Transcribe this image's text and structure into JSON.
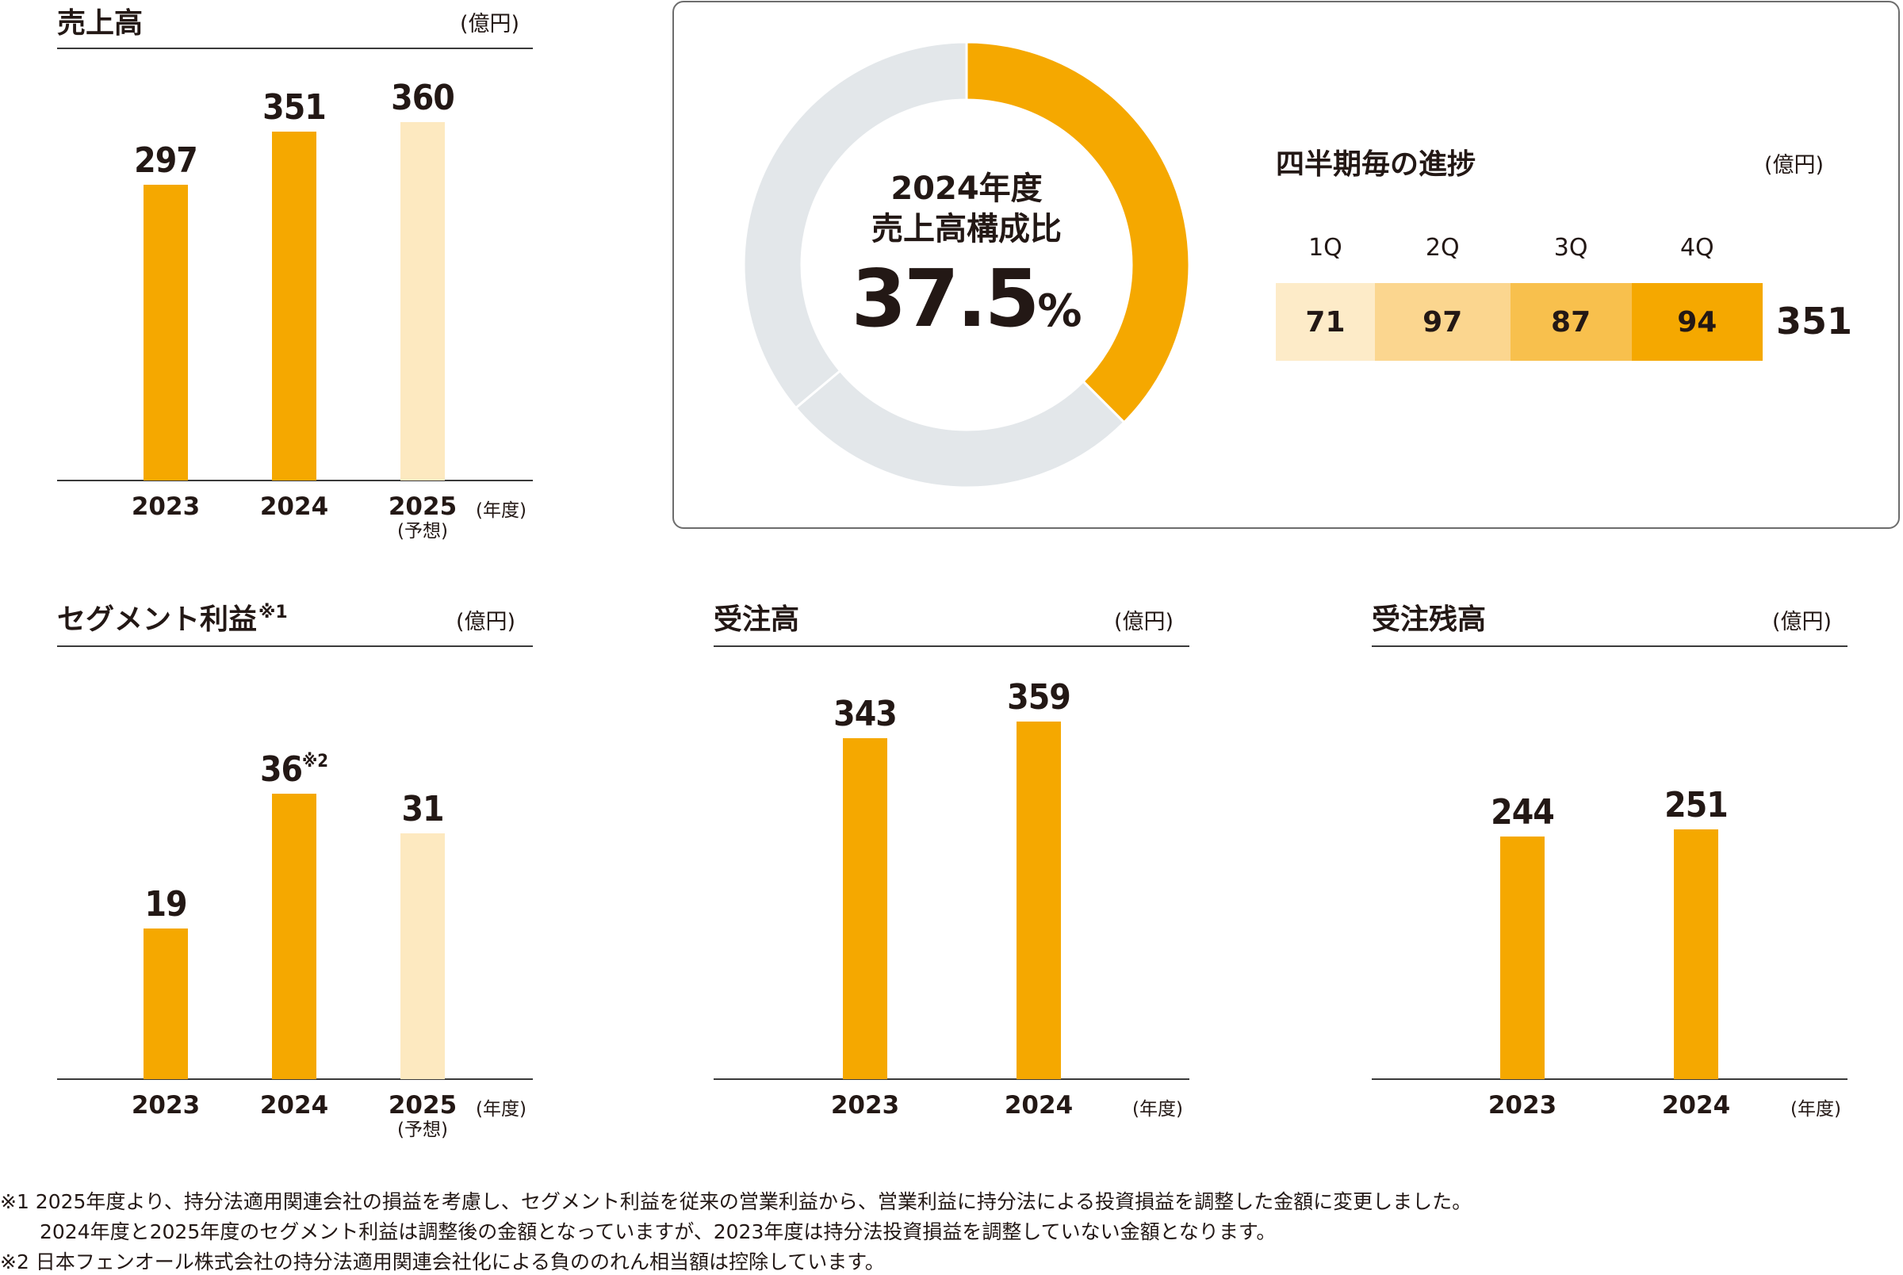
{
  "colors": {
    "actual": "#F5A800",
    "forecast": "#FDE9C0",
    "donut_rest": "#E3E7EA",
    "text": "#231815",
    "quarters": [
      "#FDEBC8",
      "#FBD68F",
      "#F8C04D",
      "#F5A800"
    ]
  },
  "chart_data": [
    {
      "id": "sales",
      "type": "bar",
      "title": "売上高",
      "unit": "(億円)",
      "xunit": "(年度)",
      "categories": [
        "2023",
        "2024",
        "2025"
      ],
      "category_sub": [
        "",
        "",
        "(予想)"
      ],
      "values": [
        297,
        351,
        360
      ],
      "forecast": [
        false,
        false,
        true
      ],
      "value_notes": [
        "",
        "",
        ""
      ]
    },
    {
      "id": "share",
      "type": "pie",
      "title_line1": "2024年度",
      "title_line2": "売上高構成比",
      "value": "37.5",
      "value_unit": "%",
      "values": [
        37.5,
        26.4,
        36.1
      ]
    },
    {
      "id": "quarters",
      "type": "bar",
      "title": "四半期毎の進捗",
      "unit": "(億円)",
      "categories": [
        "1Q",
        "2Q",
        "3Q",
        "4Q"
      ],
      "values": [
        71,
        97,
        87,
        94
      ],
      "total": "351"
    },
    {
      "id": "segment",
      "type": "bar",
      "title": "セグメント利益",
      "title_note": "※1",
      "unit": "(億円)",
      "xunit": "(年度)",
      "categories": [
        "2023",
        "2024",
        "2025"
      ],
      "category_sub": [
        "",
        "",
        "(予想)"
      ],
      "values": [
        19,
        36,
        31
      ],
      "forecast": [
        false,
        false,
        true
      ],
      "value_notes": [
        "",
        "※2",
        ""
      ]
    },
    {
      "id": "orders",
      "type": "bar",
      "title": "受注高",
      "unit": "(億円)",
      "xunit": "(年度)",
      "categories": [
        "2023",
        "2024"
      ],
      "category_sub": [
        "",
        ""
      ],
      "values": [
        343,
        359
      ],
      "forecast": [
        false,
        false
      ],
      "value_notes": [
        "",
        ""
      ]
    },
    {
      "id": "backlog",
      "type": "bar",
      "title": "受注残高",
      "unit": "(億円)",
      "xunit": "(年度)",
      "categories": [
        "2023",
        "2024"
      ],
      "category_sub": [
        "",
        ""
      ],
      "values": [
        244,
        251
      ],
      "forecast": [
        false,
        false
      ],
      "value_notes": [
        "",
        ""
      ]
    }
  ],
  "footnotes": [
    "※1 2025年度より、持分法適用関連会社の損益を考慮し、セグメント利益を従来の営業利益から、営業利益に持分法による投資損益を調整した金額に変更しました。",
    "2024年度と2025年度のセグメント利益は調整後の金額となっていますが、2023年度は持分法投資損益を調整していない金額となります。",
    "※2 日本フェンオール株式会社の持分法適用関連会社化による負ののれん相当額は控除しています。"
  ]
}
